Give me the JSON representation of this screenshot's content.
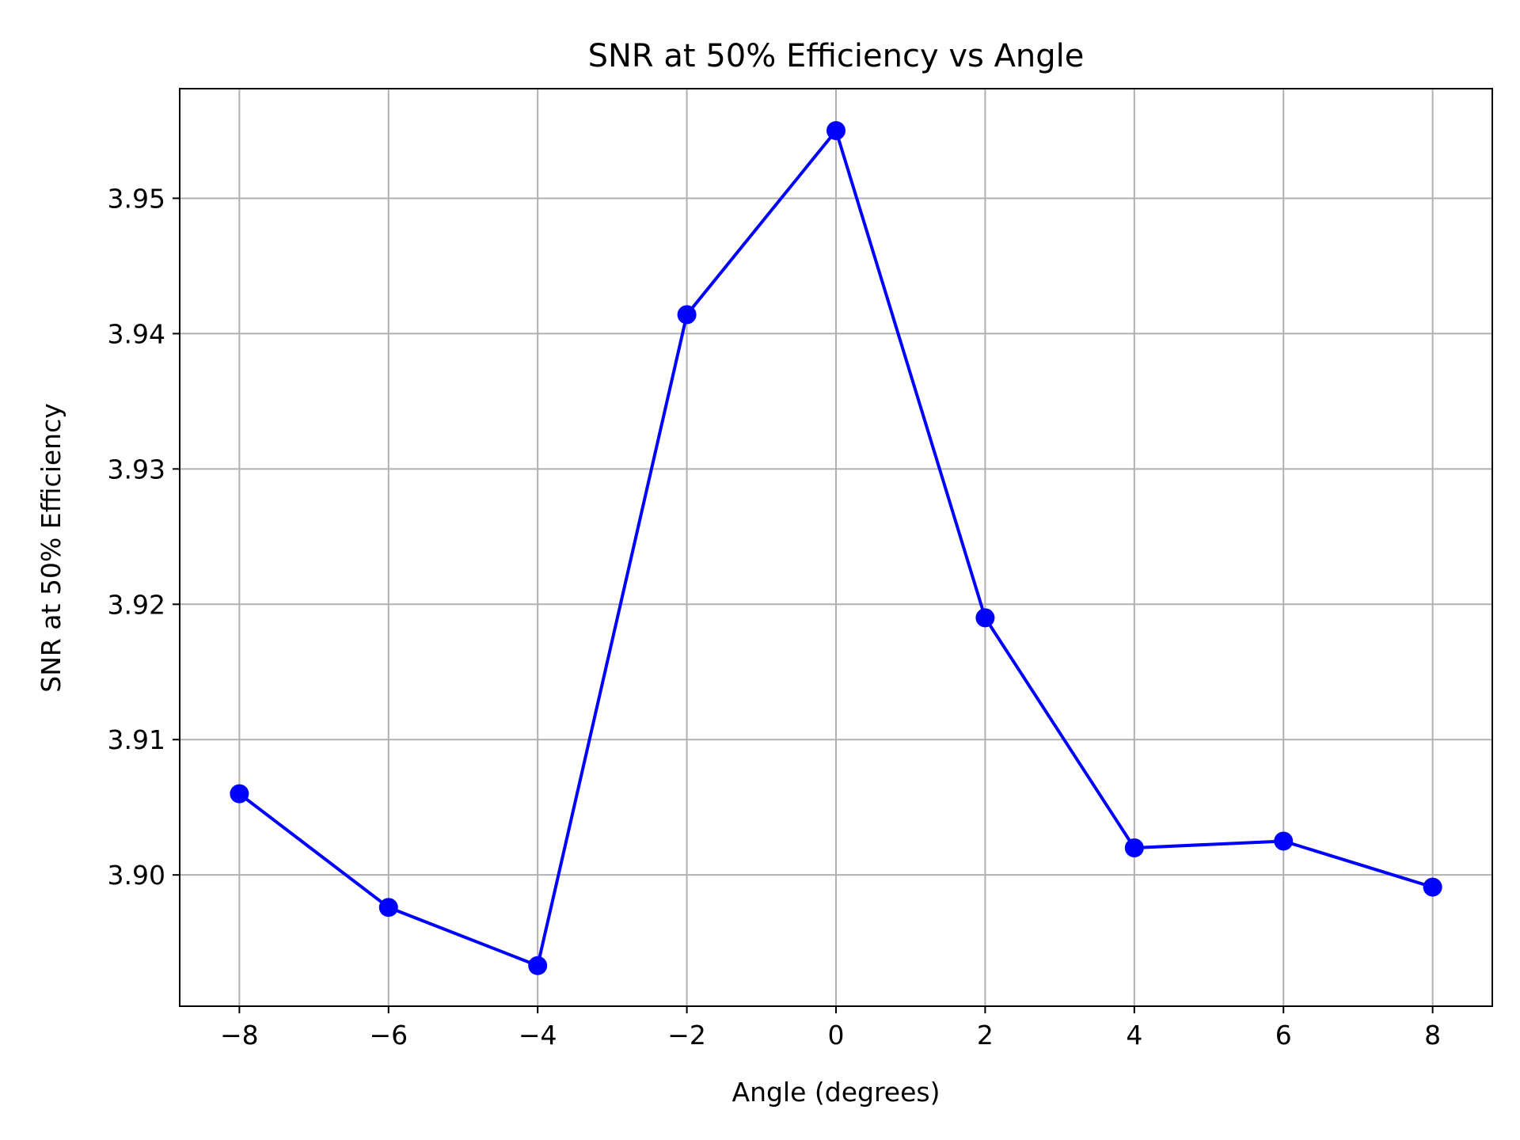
{
  "chart_data": {
    "type": "line",
    "title": "SNR at 50% Efficiency vs Angle",
    "xlabel": "Angle (degrees)",
    "ylabel": "SNR at 50% Efficiency",
    "xlim": [
      -8.8,
      8.8
    ],
    "ylim": [
      3.8903,
      3.9581
    ],
    "xticks": [
      -8,
      -6,
      -4,
      -2,
      0,
      2,
      4,
      6,
      8
    ],
    "xtick_labels": [
      "−8",
      "−6",
      "−4",
      "−2",
      "0",
      "2",
      "4",
      "6",
      "8"
    ],
    "yticks": [
      3.9,
      3.91,
      3.92,
      3.93,
      3.94,
      3.95
    ],
    "ytick_labels": [
      "3.90",
      "3.91",
      "3.92",
      "3.93",
      "3.94",
      "3.95"
    ],
    "grid": true,
    "legend": "none",
    "series": [
      {
        "color": "#0000ff",
        "marker": "circle",
        "x": [
          -8,
          -6,
          -4,
          -2,
          0,
          2,
          4,
          6,
          8
        ],
        "y": [
          3.906,
          3.8976,
          3.8933,
          3.9414,
          3.955,
          3.919,
          3.902,
          3.9025,
          3.8991
        ]
      }
    ]
  }
}
